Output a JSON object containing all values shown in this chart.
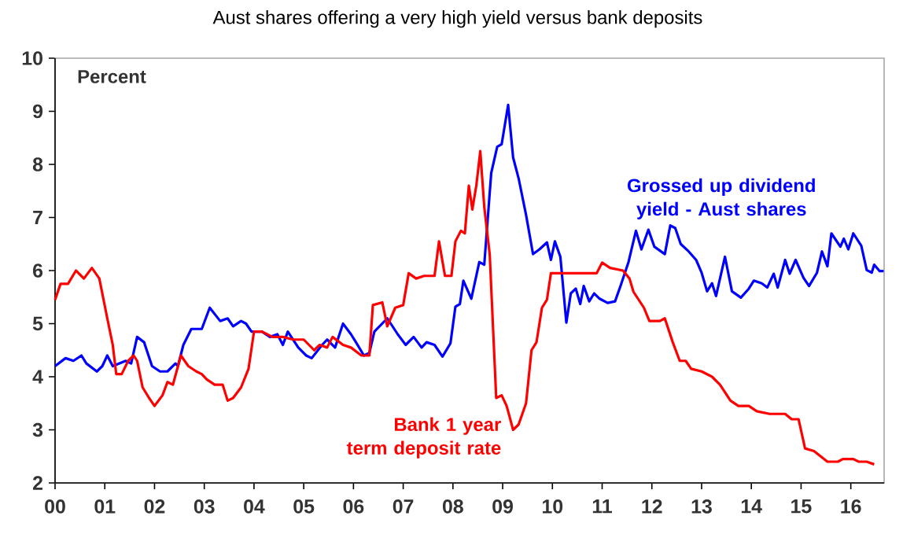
{
  "chart_data": {
    "type": "line",
    "title": "Aust shares offering a very high yield versus bank deposits",
    "annotations": [
      "Percent"
    ],
    "xlim": [
      2000,
      2016.67
    ],
    "ylim": [
      2,
      10
    ],
    "yticks": [
      2,
      3,
      4,
      5,
      6,
      7,
      8,
      9,
      10
    ],
    "xticks": [
      {
        "value": 2000,
        "label": "00"
      },
      {
        "value": 2001,
        "label": "01"
      },
      {
        "value": 2002,
        "label": "02"
      },
      {
        "value": 2003,
        "label": "03"
      },
      {
        "value": 2004,
        "label": "04"
      },
      {
        "value": 2005,
        "label": "05"
      },
      {
        "value": 2006,
        "label": "06"
      },
      {
        "value": 2007,
        "label": "07"
      },
      {
        "value": 2008,
        "label": "08"
      },
      {
        "value": 2009,
        "label": "09"
      },
      {
        "value": 2010,
        "label": "10"
      },
      {
        "value": 2011,
        "label": "11"
      },
      {
        "value": 2012,
        "label": "12"
      },
      {
        "value": 2013,
        "label": "13"
      },
      {
        "value": 2014,
        "label": "14"
      },
      {
        "value": 2015,
        "label": "15"
      },
      {
        "value": 2016,
        "label": "16"
      }
    ],
    "grid": false,
    "marker": "none",
    "line_style": "solid",
    "series": [
      {
        "name": "Grossed up dividend yield - Aust shares",
        "color": "#0000ff",
        "x": [
          2000.0,
          2000.21,
          2000.37,
          2000.53,
          2000.63,
          2000.84,
          2000.95,
          2001.05,
          2001.16,
          2001.42,
          2001.53,
          2001.65,
          2001.79,
          2001.95,
          2002.11,
          2002.26,
          2002.42,
          2002.47,
          2002.58,
          2002.74,
          2002.95,
          2003.11,
          2003.32,
          2003.47,
          2003.58,
          2003.74,
          2003.84,
          2003.95,
          2004.16,
          2004.32,
          2004.47,
          2004.58,
          2004.68,
          2004.89,
          2005.05,
          2005.16,
          2005.37,
          2005.47,
          2005.63,
          2005.79,
          2005.95,
          2006.05,
          2006.21,
          2006.32,
          2006.42,
          2006.68,
          2006.89,
          2007.05,
          2007.21,
          2007.37,
          2007.47,
          2007.63,
          2007.79,
          2007.95,
          2008.05,
          2008.14,
          2008.21,
          2008.37,
          2008.53,
          2008.63,
          2008.77,
          2008.89,
          2008.98,
          2009.11,
          2009.21,
          2009.32,
          2009.47,
          2009.61,
          2009.74,
          2009.89,
          2009.97,
          2010.05,
          2010.16,
          2010.28,
          2010.37,
          2010.47,
          2010.56,
          2010.63,
          2010.74,
          2010.84,
          2010.95,
          2011.11,
          2011.26,
          2011.37,
          2011.53,
          2011.68,
          2011.79,
          2011.93,
          2012.05,
          2012.26,
          2012.37,
          2012.47,
          2012.58,
          2012.74,
          2012.89,
          2013.0,
          2013.11,
          2013.21,
          2013.29,
          2013.47,
          2013.61,
          2013.79,
          2013.95,
          2014.05,
          2014.21,
          2014.32,
          2014.45,
          2014.53,
          2014.68,
          2014.77,
          2014.89,
          2015.05,
          2015.16,
          2015.32,
          2015.42,
          2015.53,
          2015.61,
          2015.79,
          2015.86,
          2015.95,
          2016.05,
          2016.21,
          2016.32,
          2016.42,
          2016.47,
          2016.58,
          2016.66
        ],
        "values": [
          4.2,
          4.35,
          4.3,
          4.4,
          4.25,
          4.1,
          4.2,
          4.4,
          4.2,
          4.3,
          4.25,
          4.75,
          4.65,
          4.2,
          4.1,
          4.1,
          4.25,
          4.2,
          4.6,
          4.9,
          4.9,
          5.3,
          5.05,
          5.1,
          4.95,
          5.05,
          5.0,
          4.85,
          4.85,
          4.75,
          4.8,
          4.6,
          4.85,
          4.55,
          4.4,
          4.35,
          4.6,
          4.7,
          4.55,
          5.0,
          4.8,
          4.65,
          4.4,
          4.45,
          4.85,
          5.1,
          4.8,
          4.6,
          4.75,
          4.55,
          4.65,
          4.6,
          4.38,
          4.63,
          5.32,
          5.37,
          5.81,
          5.47,
          6.16,
          6.11,
          7.84,
          8.33,
          8.38,
          9.12,
          8.13,
          7.74,
          7.05,
          6.31,
          6.4,
          6.53,
          6.2,
          6.55,
          6.26,
          5.02,
          5.57,
          5.66,
          5.37,
          5.71,
          5.42,
          5.57,
          5.47,
          5.39,
          5.42,
          5.71,
          6.16,
          6.75,
          6.4,
          6.77,
          6.45,
          6.31,
          6.85,
          6.8,
          6.5,
          6.36,
          6.2,
          5.96,
          5.61,
          5.76,
          5.52,
          6.26,
          5.61,
          5.49,
          5.66,
          5.81,
          5.76,
          5.68,
          5.94,
          5.68,
          6.2,
          5.94,
          6.2,
          5.86,
          5.71,
          5.96,
          6.36,
          6.08,
          6.7,
          6.45,
          6.6,
          6.4,
          6.7,
          6.47,
          6.01,
          5.96,
          6.11,
          5.99,
          5.99
        ]
      },
      {
        "name": "Bank 1 year term deposit rate",
        "color": "#ff0000",
        "x": [
          2000.0,
          2000.11,
          2000.26,
          2000.42,
          2000.58,
          2000.74,
          2000.89,
          2001.05,
          2001.16,
          2001.23,
          2001.34,
          2001.47,
          2001.58,
          2001.65,
          2001.76,
          2001.89,
          2002.0,
          2002.16,
          2002.26,
          2002.37,
          2002.53,
          2002.68,
          2002.84,
          2002.95,
          2003.05,
          2003.21,
          2003.37,
          2003.47,
          2003.58,
          2003.74,
          2003.89,
          2004.0,
          2004.16,
          2004.37,
          2004.58,
          2004.79,
          2005.0,
          2005.21,
          2005.32,
          2005.47,
          2005.58,
          2005.79,
          2005.95,
          2006.16,
          2006.32,
          2006.39,
          2006.58,
          2006.68,
          2006.84,
          2007.0,
          2007.11,
          2007.26,
          2007.42,
          2007.63,
          2007.72,
          2007.84,
          2007.97,
          2008.05,
          2008.16,
          2008.24,
          2008.32,
          2008.39,
          2008.47,
          2008.55,
          2008.63,
          2008.74,
          2008.87,
          2008.98,
          2009.08,
          2009.21,
          2009.32,
          2009.47,
          2009.58,
          2009.68,
          2009.79,
          2009.89,
          2009.97,
          2010.11,
          2010.42,
          2010.89,
          2011.0,
          2011.16,
          2011.42,
          2011.55,
          2011.63,
          2011.84,
          2011.95,
          2012.16,
          2012.26,
          2012.42,
          2012.56,
          2012.68,
          2012.79,
          2013.0,
          2013.21,
          2013.37,
          2013.58,
          2013.74,
          2013.95,
          2014.11,
          2014.37,
          2014.68,
          2014.81,
          2014.95,
          2015.08,
          2015.26,
          2015.53,
          2015.74,
          2015.84,
          2016.05,
          2016.16,
          2016.32,
          2016.47
        ],
        "values": [
          5.45,
          5.75,
          5.75,
          6.0,
          5.85,
          6.05,
          5.85,
          5.1,
          4.6,
          4.05,
          4.05,
          4.3,
          4.4,
          4.3,
          3.8,
          3.6,
          3.45,
          3.65,
          3.9,
          3.85,
          4.4,
          4.2,
          4.1,
          4.05,
          3.95,
          3.85,
          3.85,
          3.55,
          3.6,
          3.8,
          4.15,
          4.85,
          4.85,
          4.75,
          4.75,
          4.7,
          4.7,
          4.5,
          4.6,
          4.55,
          4.75,
          4.6,
          4.55,
          4.4,
          4.4,
          5.35,
          5.4,
          4.95,
          5.3,
          5.35,
          5.95,
          5.85,
          5.9,
          5.9,
          6.55,
          5.9,
          5.9,
          6.55,
          6.75,
          6.7,
          7.6,
          7.15,
          7.6,
          8.25,
          7.2,
          6.3,
          3.6,
          3.65,
          3.45,
          3.0,
          3.1,
          3.5,
          4.5,
          4.65,
          5.3,
          5.45,
          5.95,
          5.95,
          5.95,
          5.95,
          6.15,
          6.05,
          6.0,
          5.85,
          5.6,
          5.3,
          5.05,
          5.05,
          5.1,
          4.65,
          4.3,
          4.3,
          4.15,
          4.1,
          4.0,
          3.85,
          3.55,
          3.45,
          3.45,
          3.35,
          3.3,
          3.3,
          3.2,
          3.2,
          2.65,
          2.6,
          2.4,
          2.4,
          2.45,
          2.45,
          2.4,
          2.4,
          2.35
        ]
      }
    ]
  }
}
